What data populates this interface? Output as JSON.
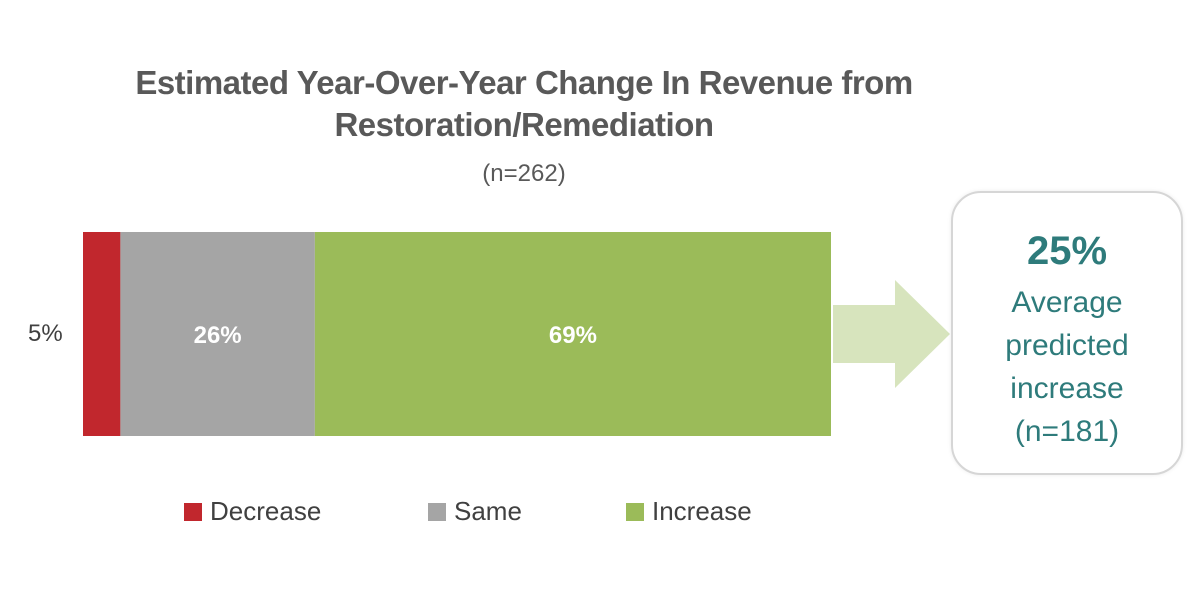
{
  "chart_data": {
    "type": "bar",
    "orientation": "horizontal-stacked",
    "title_lines": [
      "Estimated Year-Over-Year Change In Revenue from",
      "Restoration/Remediation"
    ],
    "subtitle": "(n=262)",
    "categories": [
      ""
    ],
    "series": [
      {
        "name": "Decrease",
        "values": [
          5
        ],
        "label": "5%",
        "color": "#c1272d"
      },
      {
        "name": "Same",
        "values": [
          26
        ],
        "label": "26%",
        "color": "#a5a5a5"
      },
      {
        "name": "Increase",
        "values": [
          69
        ],
        "label": "69%",
        "color": "#9bbb59"
      }
    ],
    "xlim": [
      0,
      100
    ],
    "unit": "%",
    "grid": false,
    "legend_position": "bottom"
  },
  "callout": {
    "value": "25%",
    "text": "Average predicted increase (n=181)",
    "color": "#2e7b7b",
    "arrow_color": "#d7e4bd"
  }
}
